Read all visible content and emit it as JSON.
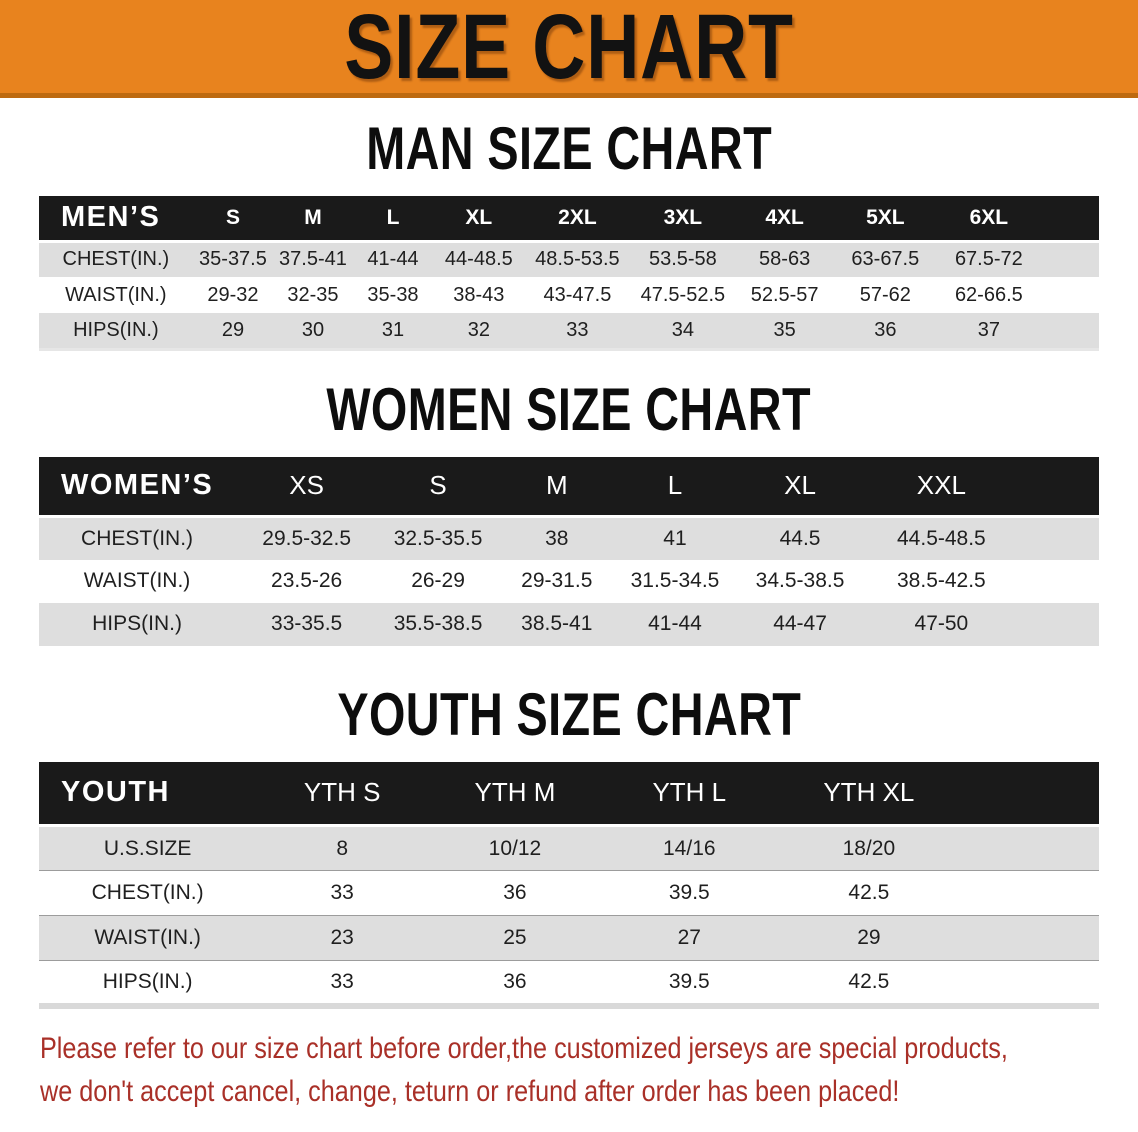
{
  "banner": {
    "title": "SIZE CHART"
  },
  "sections": [
    {
      "heading": "MAN SIZE CHART",
      "table": {
        "header": [
          "MEN’S",
          "S",
          "M",
          "L",
          "XL",
          "2XL",
          "3XL",
          "4XL",
          "5XL",
          "6XL"
        ],
        "rows": [
          [
            "CHEST(IN.)",
            "35-37.5",
            "37.5-41",
            "41-44",
            "44-48.5",
            "48.5-53.5",
            "53.5-58",
            "58-63",
            "63-67.5",
            "67.5-72"
          ],
          [
            "WAIST(IN.)",
            "29-32",
            "32-35",
            "35-38",
            "38-43",
            "43-47.5",
            "47.5-52.5",
            "52.5-57",
            "57-62",
            "62-66.5"
          ],
          [
            "HIPS(IN.)",
            "29",
            "30",
            "31",
            "32",
            "33",
            "34",
            "35",
            "36",
            "37"
          ]
        ]
      }
    },
    {
      "heading": "WOMEN SIZE CHART",
      "table": {
        "header": [
          "WOMEN’S",
          "XS",
          "S",
          "M",
          "L",
          "XL",
          "XXL"
        ],
        "rows": [
          [
            "CHEST(IN.)",
            "29.5-32.5",
            "32.5-35.5",
            "38",
            "41",
            "44.5",
            "44.5-48.5"
          ],
          [
            "WAIST(IN.)",
            "23.5-26",
            "26-29",
            "29-31.5",
            "31.5-34.5",
            "34.5-38.5",
            "38.5-42.5"
          ],
          [
            "HIPS(IN.)",
            "33-35.5",
            "35.5-38.5",
            "38.5-41",
            "41-44",
            "44-47",
            "47-50"
          ]
        ]
      }
    },
    {
      "heading": "YOUTH SIZE CHART",
      "table": {
        "header": [
          "YOUTH",
          "YTH S",
          "YTH M",
          "YTH L",
          "YTH XL"
        ],
        "rows": [
          [
            "U.S.SIZE",
            "8",
            "10/12",
            "14/16",
            "18/20"
          ],
          [
            "CHEST(IN.)",
            "33",
            "36",
            "39.5",
            "42.5"
          ],
          [
            "WAIST(IN.)",
            "23",
            "25",
            "27",
            "29"
          ],
          [
            "HIPS(IN.)",
            "33",
            "36",
            "39.5",
            "42.5"
          ]
        ]
      }
    }
  ],
  "disclaimer": {
    "line1": "Please refer to our size chart before order,the customized jerseys are special products,",
    "line2": "we don't accept cancel, change, teturn or refund after order has been placed!"
  },
  "colors": {
    "banner_bg": "#E8831E",
    "banner_border": "#BD6A10",
    "table_header_bg": "#1A1A1A",
    "row_alt_bg": "#DEDEDE",
    "disclaimer_red": "#A93028"
  }
}
